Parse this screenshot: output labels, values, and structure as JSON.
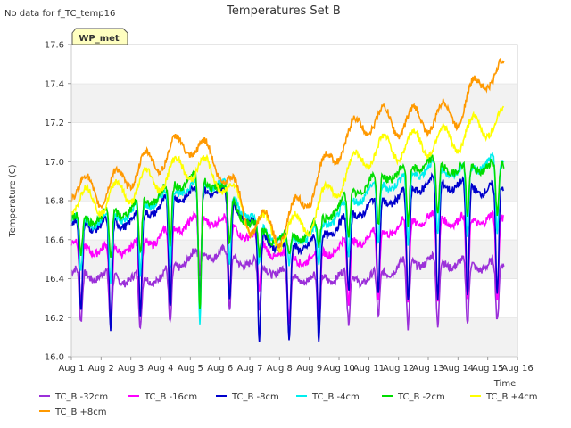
{
  "chart_data": {
    "type": "line",
    "title": "Temperatures Set B",
    "note": "No data for f_TC_temp16",
    "station_label": "WP_met",
    "xlabel": "Time",
    "ylabel": "Temperature (C)",
    "ylim": [
      16.0,
      17.6
    ],
    "yticks": [
      "16.0",
      "16.2",
      "16.4",
      "16.6",
      "16.8",
      "17.0",
      "17.2",
      "17.4",
      "17.6"
    ],
    "xlim": [
      "2024-08-01",
      "2024-08-16"
    ],
    "xticks": [
      "Aug 1",
      "Aug 2",
      "Aug 3",
      "Aug 4",
      "Aug 5",
      "Aug 6",
      "Aug 7",
      "Aug 8",
      "Aug 9",
      "Aug 10",
      "Aug 11",
      "Aug 12",
      "Aug 13",
      "Aug 14",
      "Aug 15",
      "Aug 16"
    ],
    "grid": "horizontal bands",
    "legend_position": "bottom",
    "x": [
      "2024-08-01",
      "2024-08-02",
      "2024-08-03",
      "2024-08-04",
      "2024-08-05",
      "2024-08-06",
      "2024-08-07",
      "2024-08-08",
      "2024-08-09",
      "2024-08-10",
      "2024-08-11",
      "2024-08-12",
      "2024-08-13",
      "2024-08-14",
      "2024-08-15"
    ],
    "series": [
      {
        "name": "TC_B -32cm",
        "color": "#9b30d9",
        "values": [
          16.43,
          16.42,
          16.4,
          16.41,
          16.52,
          16.54,
          16.48,
          16.44,
          16.4,
          16.42,
          16.4,
          16.47,
          16.5,
          16.48,
          16.47
        ],
        "daily_min": [
          16.15,
          16.12,
          16.12,
          16.14,
          16.42,
          16.22,
          16.22,
          16.08,
          16.1,
          16.15,
          16.18,
          16.12,
          16.12,
          16.14,
          16.15
        ]
      },
      {
        "name": "TC_B -16cm",
        "color": "#ff00ff",
        "values": [
          16.58,
          16.55,
          16.56,
          16.62,
          16.7,
          16.71,
          16.62,
          16.52,
          16.5,
          16.57,
          16.62,
          16.67,
          16.72,
          16.7,
          16.71
        ],
        "daily_min": [
          16.25,
          16.15,
          16.2,
          16.25,
          16.4,
          16.3,
          16.3,
          16.15,
          16.15,
          16.25,
          16.25,
          16.25,
          16.25,
          16.25,
          16.25
        ]
      },
      {
        "name": "TC_B -8cm",
        "color": "#0000cc",
        "values": [
          16.68,
          16.68,
          16.7,
          16.78,
          16.85,
          16.86,
          16.7,
          16.56,
          16.58,
          16.68,
          16.78,
          16.82,
          16.9,
          16.88,
          16.86
        ],
        "daily_min": [
          16.2,
          16.12,
          16.2,
          16.22,
          16.28,
          16.25,
          16.05,
          16.05,
          16.05,
          16.3,
          16.3,
          16.25,
          16.25,
          16.28,
          16.3
        ]
      },
      {
        "name": "TC_B -4cm",
        "color": "#00eeee",
        "values": [
          16.7,
          16.7,
          16.74,
          16.82,
          16.88,
          16.9,
          16.72,
          16.6,
          16.62,
          16.74,
          16.86,
          16.9,
          16.98,
          16.95,
          17.0
        ],
        "daily_min": [
          16.4,
          16.35,
          16.4,
          16.45,
          16.15,
          16.45,
          16.45,
          16.45,
          16.45,
          16.5,
          16.55,
          16.55,
          16.6,
          16.6,
          16.6
        ]
      },
      {
        "name": "TC_B -2cm",
        "color": "#00dd00",
        "values": [
          16.7,
          16.72,
          16.76,
          16.84,
          16.92,
          16.88,
          16.68,
          16.6,
          16.64,
          16.78,
          16.9,
          16.95,
          17.0,
          16.96,
          16.98
        ],
        "daily_min": [
          16.5,
          16.48,
          16.5,
          16.55,
          16.2,
          16.55,
          16.5,
          16.5,
          16.55,
          16.6,
          16.65,
          16.65,
          16.7,
          16.7,
          16.7
        ]
      },
      {
        "name": "TC_B +4cm",
        "color": "#ffff00",
        "values": [
          16.8,
          16.8,
          16.86,
          16.92,
          16.98,
          16.92,
          16.7,
          16.62,
          16.7,
          16.9,
          17.05,
          17.08,
          17.1,
          17.12,
          17.2
        ]
      },
      {
        "name": "TC_B +8cm",
        "color": "#ff9900",
        "values": [
          16.88,
          16.84,
          16.94,
          17.02,
          17.1,
          16.98,
          16.7,
          16.64,
          16.84,
          17.08,
          17.22,
          17.2,
          17.22,
          17.25,
          17.45
        ]
      }
    ]
  }
}
